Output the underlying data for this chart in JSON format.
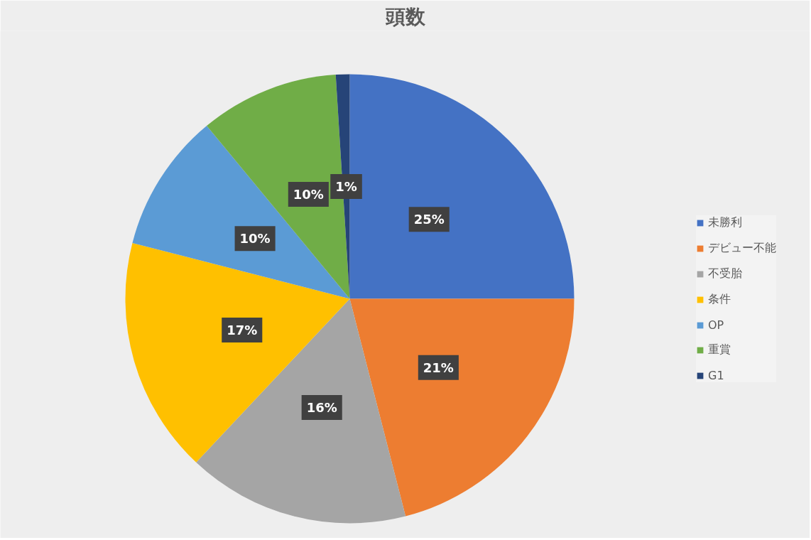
{
  "chart_data": {
    "type": "pie",
    "title": "頭数",
    "categories": [
      "未勝利",
      "デビュー不能",
      "不受胎",
      "条件",
      "OP",
      "重賞",
      "G1"
    ],
    "values": [
      25,
      21,
      16,
      17,
      10,
      10,
      1
    ],
    "colors": [
      "#4472c4",
      "#ed7d31",
      "#a5a5a5",
      "#ffc000",
      "#5b9bd5",
      "#70ad47",
      "#264478"
    ],
    "value_labels": [
      "25%",
      "21%",
      "16%",
      "17%",
      "10%",
      "10%",
      "1%"
    ],
    "legend": "right"
  }
}
